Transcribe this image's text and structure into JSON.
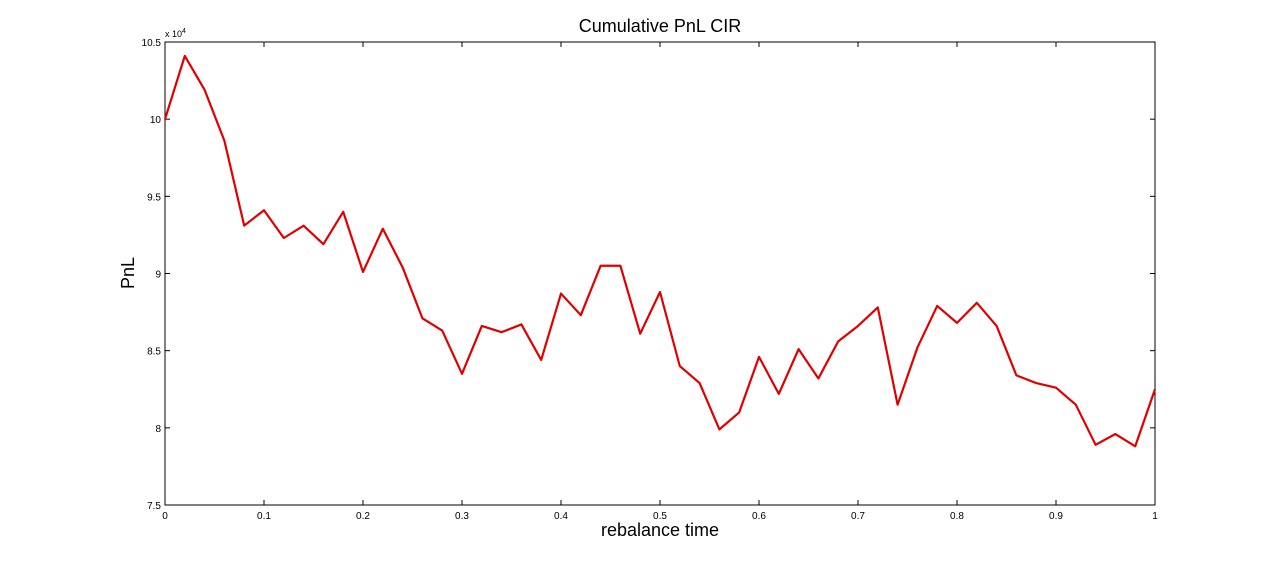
{
  "chart_data": {
    "type": "line",
    "title": "Cumulative PnL CIR",
    "xlabel": "rebalance time",
    "ylabel": "PnL",
    "y_multiplier": {
      "base": "x 10",
      "exponent": "4"
    },
    "xlim": [
      0,
      1
    ],
    "ylim": [
      7.5,
      10.5
    ],
    "xticks": [
      0,
      0.1,
      0.2,
      0.3,
      0.4,
      0.5,
      0.6,
      0.7,
      0.8,
      0.9,
      1
    ],
    "xtick_labels": [
      "0",
      "0.1",
      "0.2",
      "0.3",
      "0.4",
      "0.5",
      "0.6",
      "0.7",
      "0.8",
      "0.9",
      "1"
    ],
    "yticks": [
      7.5,
      8,
      8.5,
      9,
      9.5,
      10,
      10.5
    ],
    "ytick_labels": [
      "7.5",
      "8",
      "8.5",
      "9",
      "9.5",
      "10",
      "10.5"
    ],
    "grid": false,
    "series": [
      {
        "name": "Cumulative PnL",
        "color": "#e00000",
        "x": [
          0,
          0.02,
          0.04,
          0.06,
          0.08,
          0.1,
          0.12,
          0.14,
          0.16,
          0.18,
          0.2,
          0.22,
          0.24,
          0.26,
          0.28,
          0.3,
          0.32,
          0.34,
          0.36,
          0.38,
          0.4,
          0.42,
          0.44,
          0.46,
          0.48,
          0.5,
          0.52,
          0.54,
          0.56,
          0.58,
          0.6,
          0.62,
          0.64,
          0.66,
          0.68,
          0.7,
          0.72,
          0.74,
          0.76,
          0.78,
          0.8,
          0.82,
          0.84,
          0.86,
          0.88,
          0.9,
          0.92,
          0.94,
          0.96,
          0.98,
          1.0
        ],
        "values": [
          10.0,
          10.41,
          10.19,
          9.86,
          9.31,
          9.41,
          9.23,
          9.31,
          9.19,
          9.4,
          9.01,
          9.29,
          9.04,
          8.71,
          8.63,
          8.35,
          8.66,
          8.62,
          8.67,
          8.44,
          8.87,
          8.73,
          9.05,
          9.05,
          8.61,
          8.88,
          8.4,
          8.29,
          7.99,
          8.1,
          8.46,
          8.22,
          8.51,
          8.32,
          8.56,
          8.66,
          8.78,
          8.15,
          8.52,
          8.79,
          8.68,
          8.81,
          8.66,
          8.34,
          8.29,
          8.26,
          8.15,
          7.89,
          7.96,
          7.88,
          8.25
        ]
      }
    ]
  }
}
